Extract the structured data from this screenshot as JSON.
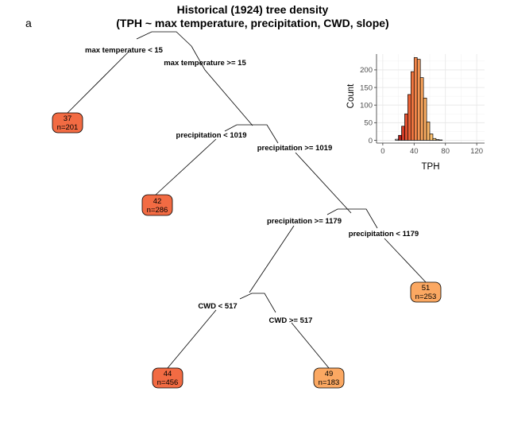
{
  "panel_label": "a",
  "title_line1": "Historical (1924) tree density",
  "title_line2": "(TPH ~ max temperature, precipitation, CWD, slope)",
  "tree": {
    "splits": [
      {
        "left": "max temperature < 15",
        "right": "max temperature >= 15"
      },
      {
        "left": "precipitation < 1019",
        "right": "precipitation >= 1019"
      },
      {
        "left": "precipitation >= 1179",
        "right": "precipitation < 1179"
      },
      {
        "left": "CWD < 517",
        "right": "CWD >= 517"
      }
    ],
    "leaves": [
      {
        "value": "37",
        "n": "n=201",
        "color": "#f26b43"
      },
      {
        "value": "42",
        "n": "n=286",
        "color": "#f26b43"
      },
      {
        "value": "51",
        "n": "n=253",
        "color": "#fba862"
      },
      {
        "value": "44",
        "n": "n=456",
        "color": "#f26b43"
      },
      {
        "value": "49",
        "n": "n=183",
        "color": "#fba862"
      }
    ]
  },
  "chart_data": {
    "type": "bar",
    "xlabel": "TPH",
    "ylabel": "Count",
    "xlim": [
      -8,
      130
    ],
    "ylim": [
      -8,
      245
    ],
    "xticks": [
      0,
      40,
      80,
      120
    ],
    "yticks": [
      0,
      50,
      100,
      150,
      200
    ],
    "grid": true,
    "bin_width": 4,
    "bins": [
      {
        "x0": 16,
        "count": 3
      },
      {
        "x0": 20,
        "count": 14,
        "color": "#b2221c"
      },
      {
        "x0": 24,
        "count": 40,
        "color": "#d03a26"
      },
      {
        "x0": 28,
        "count": 75,
        "color": "#e04f2f"
      },
      {
        "x0": 32,
        "count": 130,
        "color": "#eb6438"
      },
      {
        "x0": 36,
        "count": 195,
        "color": "#f07540"
      },
      {
        "x0": 40,
        "count": 235,
        "color": "#f4864a"
      },
      {
        "x0": 44,
        "count": 230,
        "color": "#f69653"
      },
      {
        "x0": 48,
        "count": 178,
        "color": "#f8a35b"
      },
      {
        "x0": 52,
        "count": 120,
        "color": "#faad62"
      },
      {
        "x0": 56,
        "count": 52,
        "color": "#fbb868"
      },
      {
        "x0": 60,
        "count": 18,
        "color": "#fcc170"
      },
      {
        "x0": 64,
        "count": 5,
        "color": "#fdc977"
      },
      {
        "x0": 68,
        "count": 2,
        "color": "#fdcf7c"
      },
      {
        "x0": 72,
        "count": 1,
        "color": "#fdd480"
      }
    ]
  }
}
